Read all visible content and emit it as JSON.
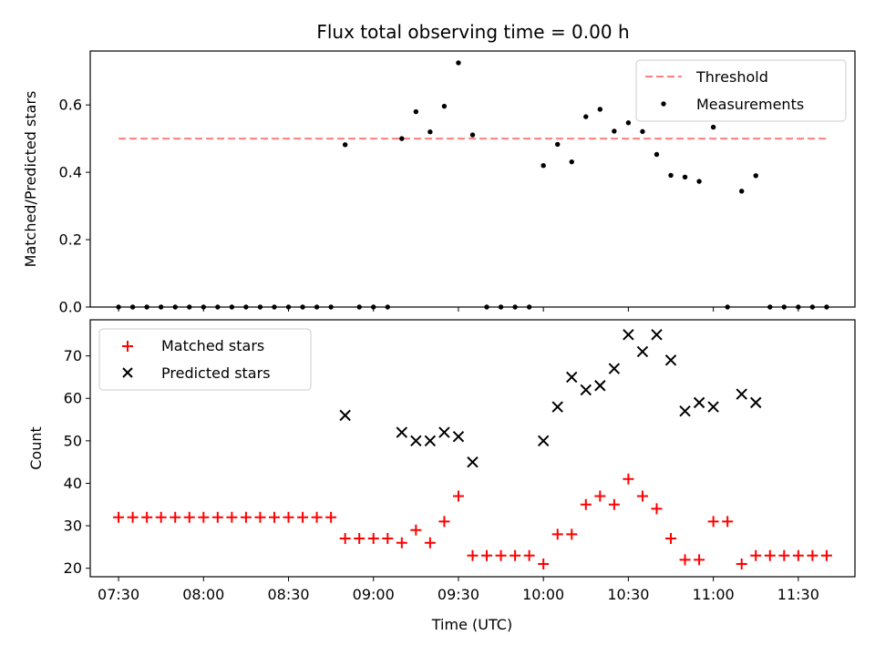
{
  "chart_data": [
    {
      "type": "scatter",
      "title": "Flux total observing time = 0.00 h",
      "xlabel": "",
      "ylabel": "Matched/Predicted stars",
      "xlim": [
        "07:20",
        "11:50"
      ],
      "ylim": [
        0,
        0.76
      ],
      "yticks": [
        "0.0",
        "0.2",
        "0.4",
        "0.6"
      ],
      "xticks": [
        "07:30",
        "08:00",
        "08:30",
        "09:00",
        "09:30",
        "10:00",
        "10:30",
        "11:00",
        "11:30"
      ],
      "x_tick_labels_visible": false,
      "legend_position": "top-right",
      "threshold": {
        "name": "Threshold",
        "value": 0.5,
        "x_range": [
          "07:30",
          "11:40"
        ],
        "color": "#ff7f7f",
        "style": "dashed"
      },
      "series": [
        {
          "name": "Measurements",
          "color": "#000000",
          "marker": "dot",
          "points": [
            [
              "07:30",
              0.0
            ],
            [
              "07:35",
              0.0
            ],
            [
              "07:40",
              0.0
            ],
            [
              "07:45",
              0.0
            ],
            [
              "07:50",
              0.0
            ],
            [
              "07:55",
              0.0
            ],
            [
              "08:00",
              0.0
            ],
            [
              "08:05",
              0.0
            ],
            [
              "08:10",
              0.0
            ],
            [
              "08:15",
              0.0
            ],
            [
              "08:20",
              0.0
            ],
            [
              "08:25",
              0.0
            ],
            [
              "08:30",
              0.0
            ],
            [
              "08:35",
              0.0
            ],
            [
              "08:40",
              0.0
            ],
            [
              "08:45",
              0.0
            ],
            [
              "08:50",
              0.482
            ],
            [
              "08:55",
              0.0
            ],
            [
              "09:00",
              0.0
            ],
            [
              "09:05",
              0.0
            ],
            [
              "09:10",
              0.5
            ],
            [
              "09:15",
              0.58
            ],
            [
              "09:20",
              0.52
            ],
            [
              "09:25",
              0.596
            ],
            [
              "09:30",
              0.725
            ],
            [
              "09:35",
              0.511
            ],
            [
              "09:40",
              0.0
            ],
            [
              "09:45",
              0.0
            ],
            [
              "09:50",
              0.0
            ],
            [
              "09:55",
              0.0
            ],
            [
              "10:00",
              0.42
            ],
            [
              "10:05",
              0.483
            ],
            [
              "10:10",
              0.431
            ],
            [
              "10:15",
              0.565
            ],
            [
              "10:20",
              0.587
            ],
            [
              "10:25",
              0.522
            ],
            [
              "10:30",
              0.547
            ],
            [
              "10:35",
              0.521
            ],
            [
              "10:40",
              0.453
            ],
            [
              "10:45",
              0.391
            ],
            [
              "10:50",
              0.386
            ],
            [
              "10:55",
              0.373
            ],
            [
              "11:00",
              0.534
            ],
            [
              "11:05",
              0.0
            ],
            [
              "11:10",
              0.344
            ],
            [
              "11:15",
              0.39
            ],
            [
              "11:20",
              0.0
            ],
            [
              "11:25",
              0.0
            ],
            [
              "11:30",
              0.0
            ],
            [
              "11:35",
              0.0
            ],
            [
              "11:40",
              0.0
            ]
          ]
        }
      ]
    },
    {
      "type": "scatter",
      "title": "",
      "xlabel": "Time (UTC)",
      "ylabel": "Count",
      "xlim": [
        "07:20",
        "11:50"
      ],
      "ylim": [
        18,
        78.5
      ],
      "yticks": [
        "20",
        "30",
        "40",
        "50",
        "60",
        "70"
      ],
      "xticks": [
        "07:30",
        "08:00",
        "08:30",
        "09:00",
        "09:30",
        "10:00",
        "10:30",
        "11:00",
        "11:30"
      ],
      "legend_position": "top-left",
      "series": [
        {
          "name": "Matched stars",
          "color": "#ff0000",
          "marker": "plus",
          "points": [
            [
              "07:30",
              32
            ],
            [
              "07:35",
              32
            ],
            [
              "07:40",
              32
            ],
            [
              "07:45",
              32
            ],
            [
              "07:50",
              32
            ],
            [
              "07:55",
              32
            ],
            [
              "08:00",
              32
            ],
            [
              "08:05",
              32
            ],
            [
              "08:10",
              32
            ],
            [
              "08:15",
              32
            ],
            [
              "08:20",
              32
            ],
            [
              "08:25",
              32
            ],
            [
              "08:30",
              32
            ],
            [
              "08:35",
              32
            ],
            [
              "08:40",
              32
            ],
            [
              "08:45",
              32
            ],
            [
              "08:50",
              27
            ],
            [
              "08:55",
              27
            ],
            [
              "09:00",
              27
            ],
            [
              "09:05",
              27
            ],
            [
              "09:10",
              26
            ],
            [
              "09:15",
              29
            ],
            [
              "09:20",
              26
            ],
            [
              "09:25",
              31
            ],
            [
              "09:30",
              37
            ],
            [
              "09:35",
              23
            ],
            [
              "09:40",
              23
            ],
            [
              "09:45",
              23
            ],
            [
              "09:50",
              23
            ],
            [
              "09:55",
              23
            ],
            [
              "10:00",
              21
            ],
            [
              "10:05",
              28
            ],
            [
              "10:10",
              28
            ],
            [
              "10:15",
              35
            ],
            [
              "10:20",
              37
            ],
            [
              "10:25",
              35
            ],
            [
              "10:30",
              41
            ],
            [
              "10:35",
              37
            ],
            [
              "10:40",
              34
            ],
            [
              "10:45",
              27
            ],
            [
              "10:50",
              22
            ],
            [
              "10:55",
              22
            ],
            [
              "11:00",
              31
            ],
            [
              "11:05",
              31
            ],
            [
              "11:10",
              21
            ],
            [
              "11:15",
              23
            ],
            [
              "11:20",
              23
            ],
            [
              "11:25",
              23
            ],
            [
              "11:30",
              23
            ],
            [
              "11:35",
              23
            ],
            [
              "11:40",
              23
            ]
          ]
        },
        {
          "name": "Predicted stars",
          "color": "#000000",
          "marker": "x",
          "points": [
            [
              "08:50",
              56
            ],
            [
              "09:10",
              52
            ],
            [
              "09:15",
              50
            ],
            [
              "09:20",
              50
            ],
            [
              "09:25",
              52
            ],
            [
              "09:30",
              51
            ],
            [
              "09:35",
              45
            ],
            [
              "10:00",
              50
            ],
            [
              "10:05",
              58
            ],
            [
              "10:10",
              65
            ],
            [
              "10:15",
              62
            ],
            [
              "10:20",
              63
            ],
            [
              "10:25",
              67
            ],
            [
              "10:30",
              75
            ],
            [
              "10:35",
              71
            ],
            [
              "10:40",
              75
            ],
            [
              "10:45",
              69
            ],
            [
              "10:50",
              57
            ],
            [
              "10:55",
              59
            ],
            [
              "11:00",
              58
            ],
            [
              "11:10",
              61
            ],
            [
              "11:15",
              59
            ]
          ]
        }
      ]
    }
  ]
}
